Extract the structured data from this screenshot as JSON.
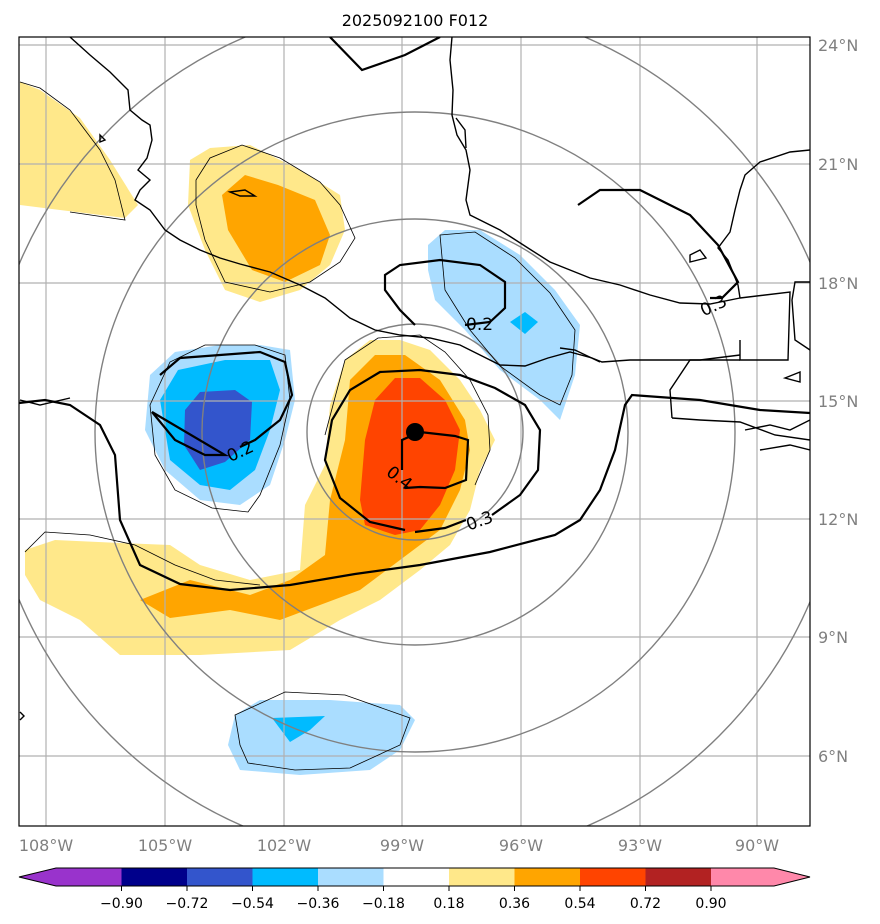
{
  "title": "2025092100 F012",
  "latitude_labels": [
    "24°N",
    "21°N",
    "18°N",
    "15°N",
    "12°N",
    "9°N",
    "6°N"
  ],
  "longitude_labels": [
    "108°W",
    "105°W",
    "102°W",
    "99°W",
    "96°W",
    "93°W",
    "90°W"
  ],
  "contour_labels": [
    "0.2",
    "0.2",
    "0.4",
    "0.3",
    "0.3"
  ],
  "colorbar": {
    "tick_labels": [
      "−0.90",
      "−0.72",
      "−0.54",
      "−0.36",
      "−0.18",
      "0.18",
      "0.36",
      "0.54",
      "0.72",
      "0.90"
    ],
    "colors": [
      "#9933cc",
      "#00008b",
      "#3355cc",
      "#00bbff",
      "#aaddff",
      "#ffffff",
      "#ffe88a",
      "#ffa500",
      "#ff4400",
      "#b22222",
      "#ff88aa"
    ]
  },
  "center_marker": "storm-center",
  "chart_data": {
    "type": "map-contour",
    "title": "2025092100 F012",
    "lat_range": [
      4,
      24
    ],
    "lon_range": [
      -108.7,
      -88.7
    ],
    "shading_levels": [
      -0.9,
      -0.72,
      -0.54,
      -0.36,
      -0.18,
      0.18,
      0.36,
      0.54,
      0.72,
      0.9
    ],
    "contour_values": [
      0.2,
      0.3,
      0.4
    ],
    "center": {
      "lat": 14.2,
      "lon": -98.7
    }
  }
}
